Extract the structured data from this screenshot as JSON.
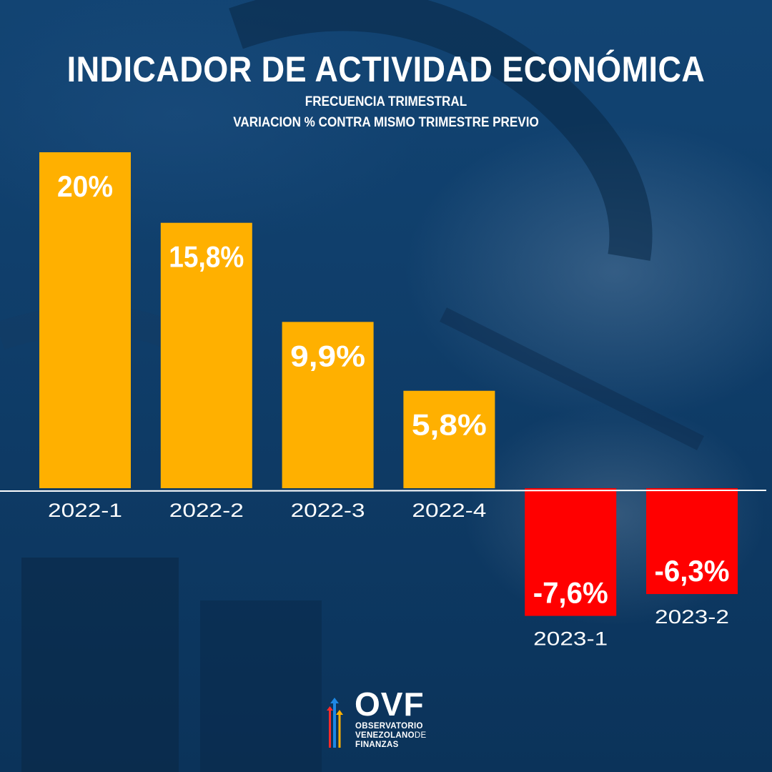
{
  "title": "INDICADOR DE ACTIVIDAD ECONÓMICA",
  "subtitle_lines": [
    "FRECUENCIA TRIMESTRAL",
    "VARIACION % CONTRA MISMO TRIMESTRE PREVIO"
  ],
  "chart_data": {
    "type": "bar",
    "categories": [
      "2022-1",
      "2022-2",
      "2022-3",
      "2022-4",
      "2023-1",
      "2023-2"
    ],
    "values": [
      20,
      15.8,
      9.9,
      5.8,
      -7.6,
      -6.3
    ],
    "data_labels": [
      "20%",
      "15,8%",
      "9,9%",
      "5,8%",
      "-7,6%",
      "-6,3%"
    ],
    "colors": {
      "positive": "#ffb000",
      "negative": "#ff0000",
      "baseline": "#ffffff",
      "text": "#ffffff"
    },
    "title": "INDICADOR DE ACTIVIDAD ECONÓMICA",
    "subtitle": "FRECUENCIA TRIMESTRAL / VARIACION % CONTRA MISMO TRIMESTRE PREVIO",
    "xlabel": "",
    "ylabel": "",
    "grid": false,
    "legend": "none"
  },
  "logo": {
    "acronym": "OVF",
    "line1": "OBSERVATORIO",
    "line2": "VENEZOLANO",
    "line2_suffix": "DE",
    "line3": "FINANZAS",
    "arrow_colors": [
      "#1e88e5",
      "#ffb000",
      "#ff2a2a"
    ]
  }
}
